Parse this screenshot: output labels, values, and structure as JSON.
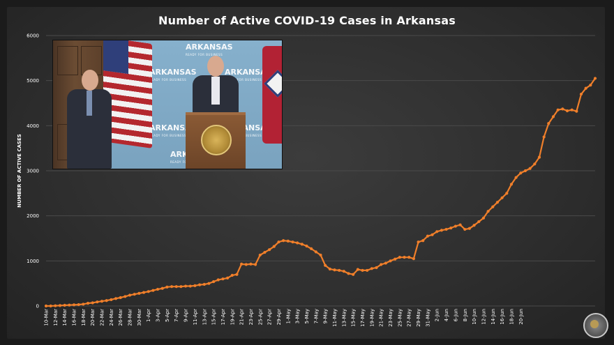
{
  "chart_data": {
    "type": "line",
    "title": "Number of Active COVID-19 Cases in Arkansas",
    "xlabel": "",
    "ylabel": "NUMBER OF ACTIVE CASES",
    "ylim": [
      0,
      6000
    ],
    "yticks": [
      0,
      1000,
      2000,
      3000,
      4000,
      5000,
      6000
    ],
    "grid": true,
    "line_color": "#f07f2a",
    "x_tick_labels": [
      "10-Mar",
      "12-Mar",
      "14-Mar",
      "16-Mar",
      "18-Mar",
      "20-Mar",
      "22-Mar",
      "24-Mar",
      "26-Mar",
      "28-Mar",
      "30-Mar",
      "1-Apr",
      "3-Apr",
      "5-Apr",
      "7-Apr",
      "9-Apr",
      "11-Apr",
      "13-Apr",
      "15-Apr",
      "17-Apr",
      "19-Apr",
      "21-Apr",
      "23-Apr",
      "25-Apr",
      "27-Apr",
      "29-Apr",
      "1-May",
      "3-May",
      "5-May",
      "7-May",
      "9-May",
      "11-May",
      "13-May",
      "15-May",
      "17-May",
      "19-May",
      "21-May",
      "23-May",
      "25-May",
      "27-May",
      "29-May",
      "31-May",
      "2-Jun",
      "4-Jun",
      "6-Jun",
      "8-Jun",
      "10-Jun",
      "12-Jun",
      "14-Jun",
      "16-Jun",
      "18-Jun",
      "20-Jun"
    ],
    "series": [
      {
        "name": "Active cases",
        "values": [
          0,
          0,
          5,
          10,
          15,
          20,
          25,
          30,
          40,
          60,
          70,
          90,
          105,
          120,
          140,
          165,
          185,
          210,
          240,
          260,
          280,
          300,
          320,
          345,
          370,
          390,
          420,
          430,
          430,
          430,
          440,
          440,
          450,
          470,
          480,
          500,
          540,
          580,
          600,
          620,
          680,
          700,
          930,
          920,
          930,
          920,
          1130,
          1190,
          1250,
          1320,
          1420,
          1450,
          1440,
          1420,
          1400,
          1370,
          1330,
          1270,
          1200,
          1130,
          900,
          820,
          800,
          790,
          770,
          720,
          700,
          810,
          790,
          790,
          830,
          850,
          920,
          950,
          1000,
          1040,
          1080,
          1080,
          1080,
          1050,
          1420,
          1450,
          1550,
          1580,
          1650,
          1680,
          1700,
          1730,
          1770,
          1800,
          1700,
          1720,
          1790,
          1870,
          1950,
          2100,
          2200,
          2300,
          2400,
          2500,
          2700,
          2850,
          2950,
          3000,
          3050,
          3150,
          3300,
          3750,
          4050,
          4200,
          4350,
          4370,
          4330,
          4350,
          4320,
          4700,
          4830,
          4900,
          5050
        ]
      }
    ]
  },
  "inset": {
    "backdrop_text": "ARKANSAS",
    "backdrop_tagline": "READY FOR BUSINESS"
  }
}
